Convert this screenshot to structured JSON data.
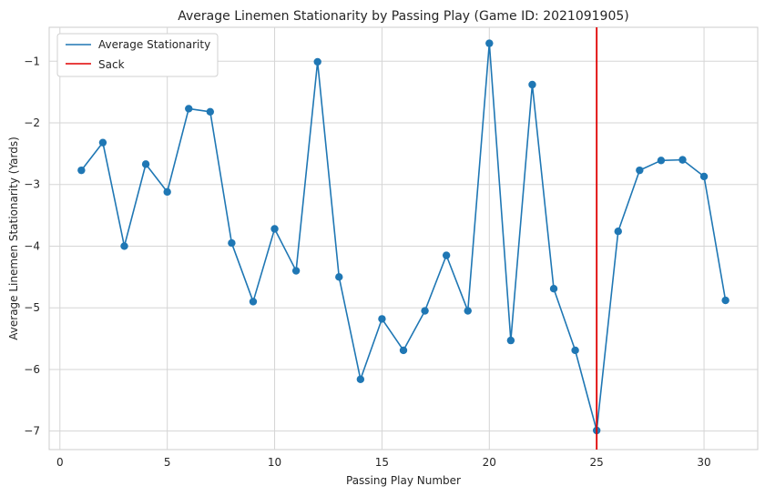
{
  "chart_data": {
    "type": "line",
    "title": "Average Linemen Stationarity by Passing Play (Game ID: 2021091905)",
    "xlabel": "Passing Play Number",
    "ylabel": "Average Linemen Stationarity (Yards)",
    "xlim": [
      -0.5,
      32.5
    ],
    "ylim": [
      -7.3,
      -0.45
    ],
    "xticks": [
      0,
      5,
      10,
      15,
      20,
      25,
      30
    ],
    "yticks": [
      -7,
      -6,
      -5,
      -4,
      -3,
      -2,
      -1
    ],
    "grid": true,
    "legend_position": "top-left",
    "series": [
      {
        "name": "Average Stationarity",
        "color": "#1f77b4",
        "marker": "circle",
        "x": [
          1,
          2,
          3,
          4,
          5,
          6,
          7,
          8,
          9,
          10,
          11,
          12,
          13,
          14,
          15,
          16,
          17,
          18,
          19,
          20,
          21,
          22,
          23,
          24,
          25,
          26,
          27,
          28,
          29,
          30,
          31
        ],
        "y": [
          -2.77,
          -2.32,
          -4.0,
          -2.67,
          -3.12,
          -1.77,
          -1.82,
          -3.95,
          -4.9,
          -3.72,
          -4.4,
          -1.01,
          -4.5,
          -6.16,
          -5.18,
          -5.69,
          -5.05,
          -4.15,
          -5.05,
          -0.71,
          -5.53,
          -1.38,
          -4.69,
          -5.69,
          -6.99,
          -3.76,
          -2.77,
          -2.61,
          -2.6,
          -2.87,
          -4.88
        ]
      }
    ],
    "vlines": [
      {
        "name": "Sack",
        "x": 25,
        "color": "#e00000"
      }
    ]
  }
}
